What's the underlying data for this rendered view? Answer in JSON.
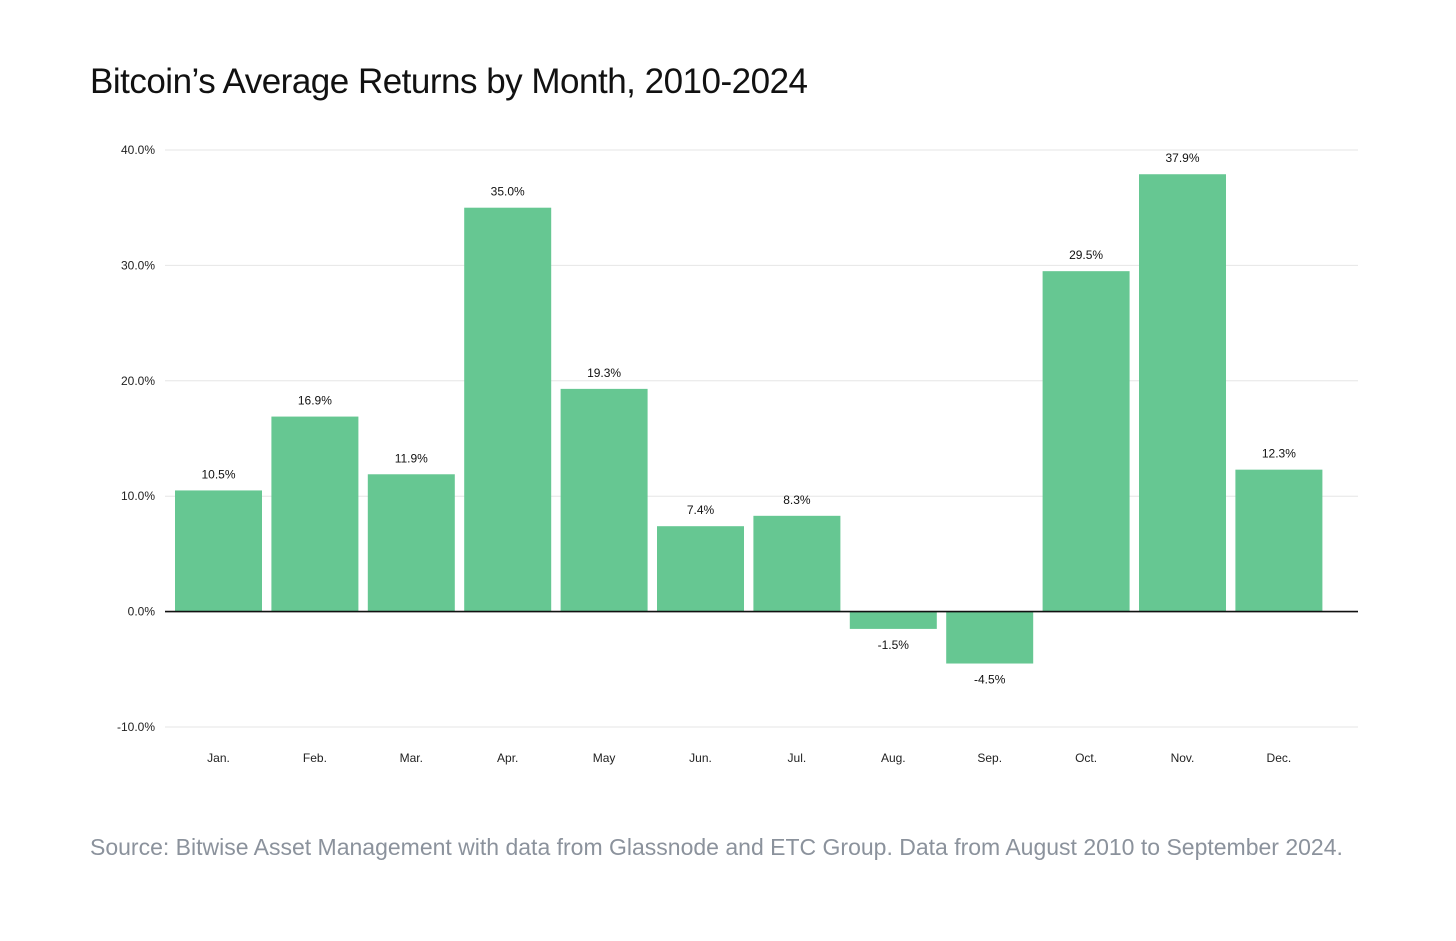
{
  "chart_data": {
    "type": "bar",
    "title": "Bitcoin’s Average Returns by Month, 2010-2024",
    "xlabel": "",
    "ylabel": "",
    "categories": [
      "Jan.",
      "Feb.",
      "Mar.",
      "Apr.",
      "May",
      "Jun.",
      "Jul.",
      "Aug.",
      "Sep.",
      "Oct.",
      "Nov.",
      "Dec."
    ],
    "values": [
      10.5,
      16.9,
      11.9,
      35.0,
      19.3,
      7.4,
      8.3,
      -1.5,
      -4.5,
      29.5,
      37.9,
      12.3
    ],
    "data_labels": [
      "10.5%",
      "16.9%",
      "11.9%",
      "35.0%",
      "19.3%",
      "7.4%",
      "8.3%",
      "-1.5%",
      "-4.5%",
      "29.5%",
      "37.9%",
      "12.3%"
    ],
    "ylim": [
      -10,
      40
    ],
    "yticks": [
      40,
      30,
      20,
      10,
      0,
      -10
    ],
    "ytick_labels": [
      "40.0%",
      "30.0%",
      "20.0%",
      "10.0%",
      "0.0%",
      "-10.0%"
    ],
    "grid": true,
    "legend": "none",
    "bar_color": "#66c792",
    "baseline_color": "#111111",
    "grid_color": "#e6e6e6"
  },
  "source_note": "Source: Bitwise Asset Management with data from Glassnode and ETC Group. Data from August 2010 to September 2024."
}
